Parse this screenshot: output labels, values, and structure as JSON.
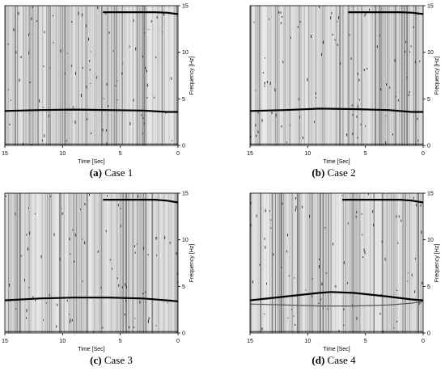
{
  "figure": {
    "panels": [
      {
        "caption_letter": "(a)",
        "caption_text": "Case 1"
      },
      {
        "caption_letter": "(b)",
        "caption_text": "Case 2"
      },
      {
        "caption_letter": "(c)",
        "caption_text": "Case 3"
      },
      {
        "caption_letter": "(d)",
        "caption_text": "Case 4"
      }
    ]
  },
  "chart_data": [
    {
      "type": "line",
      "caption": "(a) Case 1",
      "xlabel": "Time [Sec]",
      "ylabel": "Frequency [Hz]",
      "xlim": [
        15,
        0
      ],
      "ylim": [
        0,
        15
      ],
      "xticks": [
        15,
        10,
        5,
        0
      ],
      "yticks": [
        0,
        5,
        10,
        15
      ],
      "background": "dense grey vertical stripes (spectrogram-style)",
      "series": [
        {
          "x": [
            15,
            12,
            9,
            6,
            3,
            1,
            0
          ],
          "y": [
            3.7,
            3.8,
            3.85,
            3.8,
            3.75,
            3.6,
            3.6
          ]
        },
        {
          "x": [
            6.5,
            5,
            3,
            2,
            1,
            0
          ],
          "y": [
            14.3,
            14.3,
            14.3,
            14.3,
            14.25,
            14.1
          ]
        }
      ]
    },
    {
      "type": "line",
      "caption": "(b) Case 2",
      "xlabel": "Time [Sec]",
      "ylabel": "Frequency [Hz]",
      "xlim": [
        15,
        0
      ],
      "ylim": [
        0,
        15
      ],
      "xticks": [
        15,
        10,
        5,
        0
      ],
      "yticks": [
        0,
        5,
        10,
        15
      ],
      "background": "dense grey vertical stripes (spectrogram-style)",
      "series": [
        {
          "x": [
            15,
            12,
            9,
            6,
            3,
            1,
            0
          ],
          "y": [
            3.7,
            3.8,
            3.95,
            3.9,
            3.8,
            3.6,
            3.6
          ]
        },
        {
          "x": [
            6.5,
            5,
            3,
            2,
            1,
            0
          ],
          "y": [
            14.3,
            14.3,
            14.3,
            14.3,
            14.25,
            14.1
          ]
        }
      ]
    },
    {
      "type": "line",
      "caption": "(c) Case 3",
      "xlabel": "Time [Sec]",
      "ylabel": "Frequency [Hz]",
      "xlim": [
        15,
        0
      ],
      "ylim": [
        0,
        15
      ],
      "xticks": [
        15,
        10,
        5,
        0
      ],
      "yticks": [
        0,
        5,
        10,
        15
      ],
      "background": "dense grey vertical stripes (spectrogram-style)",
      "series": [
        {
          "x": [
            15,
            12,
            9,
            6,
            3,
            1,
            0
          ],
          "y": [
            3.5,
            3.7,
            3.8,
            3.8,
            3.7,
            3.5,
            3.4
          ]
        },
        {
          "x": [
            6.5,
            5,
            3,
            2,
            1,
            0
          ],
          "y": [
            14.3,
            14.3,
            14.3,
            14.3,
            14.2,
            14.0
          ]
        }
      ]
    },
    {
      "type": "line",
      "caption": "(d) Case 4",
      "xlabel": "Time [Sec]",
      "ylabel": "Frequency [Hz]",
      "xlim": [
        15,
        0
      ],
      "ylim": [
        0,
        15
      ],
      "xticks": [
        15,
        10,
        5,
        0
      ],
      "yticks": [
        0,
        5,
        10,
        15
      ],
      "background": "dense grey vertical stripes (spectrogram-style)",
      "series": [
        {
          "x": [
            15,
            12,
            9,
            8,
            6,
            3,
            1,
            0
          ],
          "y": [
            3.5,
            3.9,
            4.3,
            4.4,
            4.3,
            3.9,
            3.6,
            3.5
          ]
        },
        {
          "x": [
            15,
            12,
            9,
            6,
            3,
            1,
            0
          ],
          "y": [
            3.1,
            3.0,
            2.9,
            2.9,
            3.0,
            3.2,
            3.4
          ]
        },
        {
          "x": [
            7,
            5,
            3,
            2,
            1,
            0
          ],
          "y": [
            14.3,
            14.3,
            14.3,
            14.3,
            14.2,
            14.0
          ]
        }
      ]
    }
  ]
}
